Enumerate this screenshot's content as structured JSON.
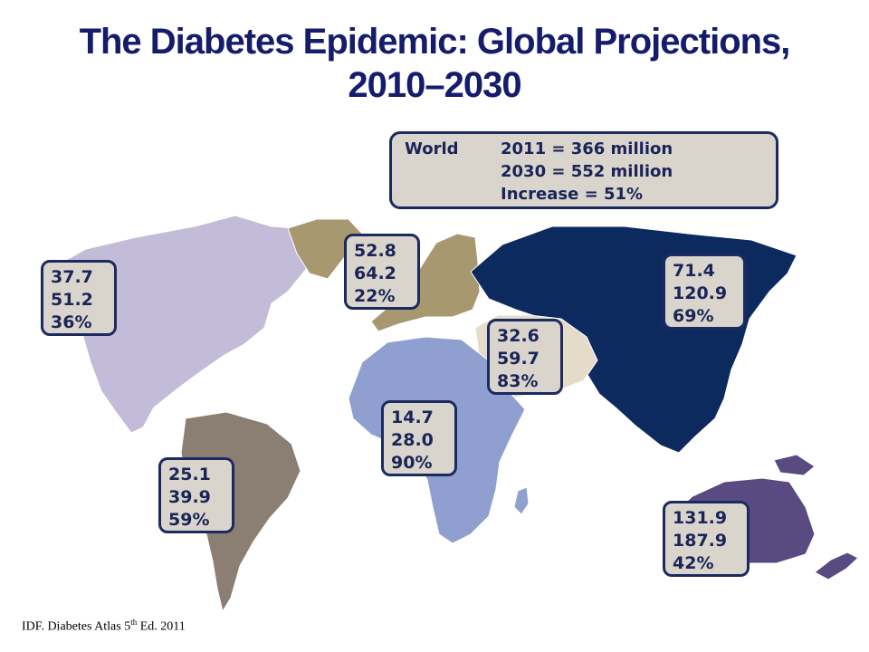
{
  "slide": {
    "title_line1": "The Diabetes Epidemic: Global Projections,",
    "title_line2": "2010–2030"
  },
  "world": {
    "label": "World",
    "line1": "2011 = 366 million",
    "line2": "2030 = 552 million",
    "line3": "Increase = 51%"
  },
  "regions": {
    "north_america": {
      "v2011": "37.7",
      "v2030": "51.2",
      "increase": "36%",
      "color": "#c3bcd8"
    },
    "europe": {
      "v2011": "52.8",
      "v2030": "64.2",
      "increase": "22%",
      "color": "#a79870"
    },
    "middle_east": {
      "v2011": "32.6",
      "v2030": "59.7",
      "increase": "83%",
      "color": "#e4dcc8"
    },
    "western_pacific": {
      "v2011": "131.9",
      "v2030": "187.9",
      "increase": "42%",
      "color": "#5a4a82"
    },
    "south_east_asia": {
      "v2011": "71.4",
      "v2030": "120.9",
      "increase": "69%",
      "color": "#0c2a5e"
    },
    "africa": {
      "v2011": "14.7",
      "v2030": "28.0",
      "increase": "90%",
      "color": "#8f9fcf"
    },
    "south_america": {
      "v2011": "25.1",
      "v2030": "39.9",
      "increase": "59%",
      "color": "#8b7e72"
    }
  },
  "source": {
    "text": "IDF. Diabetes Atlas 5",
    "superscript": "th",
    "suffix": " Ed. 2011"
  }
}
